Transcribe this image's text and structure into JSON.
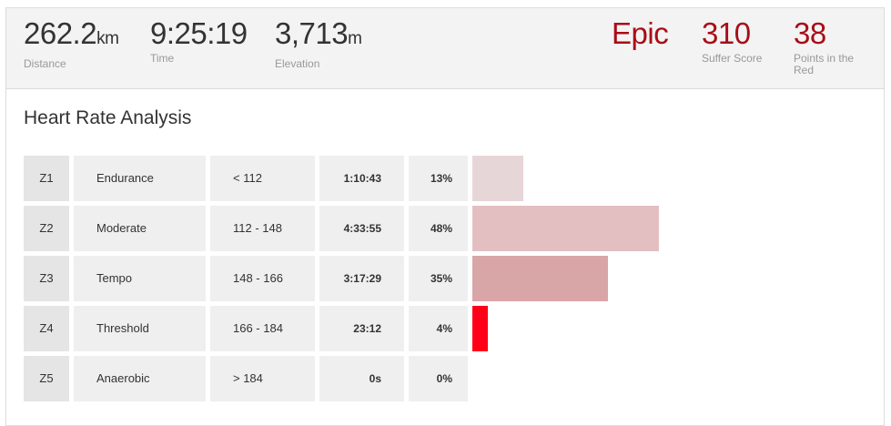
{
  "stats": {
    "distance": {
      "value": "262.2",
      "unit": "km",
      "label": "Distance"
    },
    "time": {
      "value": "9:25:19",
      "label": "Time"
    },
    "elevation": {
      "value": "3,713",
      "unit": "m",
      "label": "Elevation"
    },
    "intensity": {
      "value": "Epic"
    },
    "suffer_score": {
      "value": "310",
      "label": "Suffer Score"
    },
    "points_in_red": {
      "value": "38",
      "label_line1": "Points in the",
      "label_line2": "Red"
    }
  },
  "analysis": {
    "title": "Heart Rate Analysis",
    "zones": [
      {
        "zone": "Z1",
        "name": "Endurance",
        "range": "< 112",
        "time": "1:10:43",
        "percent": "13%",
        "fraction": 0.13,
        "bar_color": "#e7d6d8"
      },
      {
        "zone": "Z2",
        "name": "Moderate",
        "range": "112 - 148",
        "time": "4:33:55",
        "percent": "48%",
        "fraction": 0.48,
        "bar_color": "#e4bfc1"
      },
      {
        "zone": "Z3",
        "name": "Tempo",
        "range": "148 - 166",
        "time": "3:17:29",
        "percent": "35%",
        "fraction": 0.35,
        "bar_color": "#d9a6a8"
      },
      {
        "zone": "Z4",
        "name": "Threshold",
        "range": "166 - 184",
        "time": "23:12",
        "percent": "4%",
        "fraction": 0.04,
        "bar_color": "#ff0019"
      },
      {
        "zone": "Z5",
        "name": "Anaerobic",
        "range": "> 184",
        "time": "0s",
        "percent": "0%",
        "fraction": 0.0,
        "bar_color": "#ff0019"
      }
    ]
  }
}
